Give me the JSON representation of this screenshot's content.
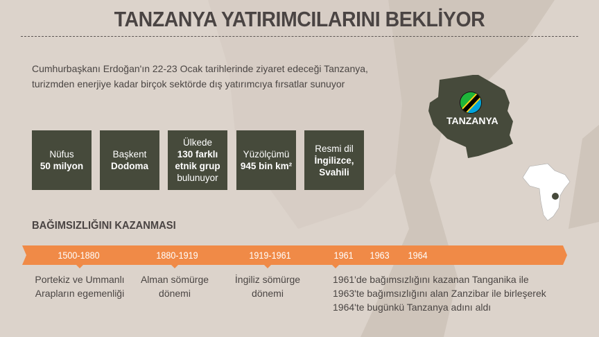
{
  "title": "TANZANYA YATIRIMCILARINI BEKLİYOR",
  "intro": "Cumhurbaşkanı Erdoğan'ın 22-23 Ocak tarihlerinde ziyaret edeceği Tanzanya, turizmden enerjiye kadar birçok sektörde dış yatırımcıya fırsatlar sunuyor",
  "facts": [
    {
      "l1": "Nüfus",
      "b1": "50 milyon"
    },
    {
      "l1": "Başkent",
      "b1": "Dodoma"
    },
    {
      "l1": "Ülkede",
      "b1": "130 farklı etnik grup",
      "l2": "bulunuyor"
    },
    {
      "l1": "Yüzölçümü",
      "b1": "945 bin km²"
    },
    {
      "l1": "Resmi dil",
      "b1": "İngilizce, Svahili"
    }
  ],
  "map_label": "TANZANYA",
  "timeline": {
    "heading": "BAĞIMSIZLIĞINI KAZANMASI",
    "years": [
      "1500-1880",
      "1880-1919",
      "1919-1961",
      "1961",
      "1963",
      "1964"
    ],
    "descs": [
      "Portekiz ve Ummanlı Arapların egemenliği",
      "Alman sömürge dönemi",
      "İngiliz sömürge dönemi"
    ],
    "final_lines": [
      "1961'de bağımsızlığını kazanan Tanganika ile",
      "1963'te bağımsızlığını alan Zanzibar ile birleşerek",
      "1964'te bugünkü Tanzanya adını aldı"
    ]
  },
  "colors": {
    "background": "#dcd3cb",
    "box": "#464a3b",
    "timeline": "#f08a47"
  }
}
